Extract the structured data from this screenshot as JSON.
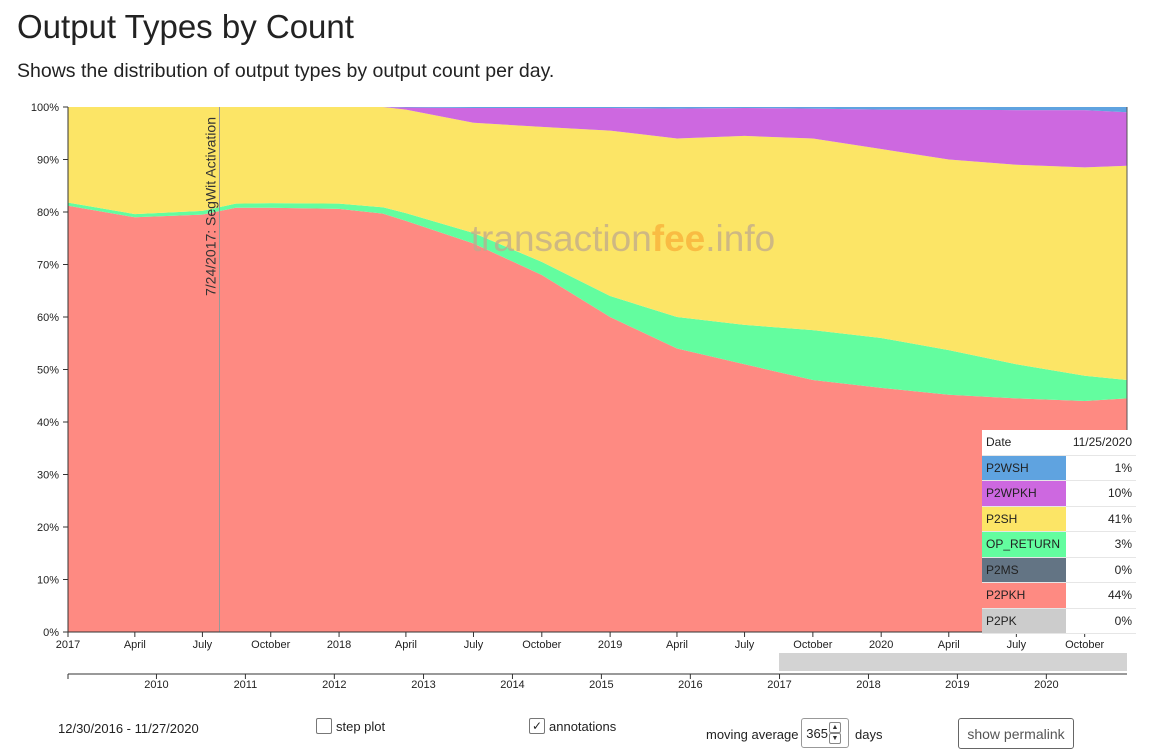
{
  "page": {
    "title": "Output Types by Count",
    "subtitle": "Shows the distribution of output types by output count per day."
  },
  "watermark": {
    "part1": "transaction",
    "part2": "fee",
    "part3": ".info"
  },
  "colors": {
    "P2WSH": "#5fa3e0",
    "P2WPKH": "#cd68e0",
    "P2SH": "#fce566",
    "OP_RETURN": "#63fd9f",
    "P2MS": "#637484",
    "P2PKH": "#fe8a82",
    "P2PK": "#cccccc"
  },
  "chart_data": {
    "type": "area",
    "stacked": true,
    "x_range": [
      "2017-01-01",
      "2020-11-27"
    ],
    "ylim": [
      0,
      100
    ],
    "y_ticks": [
      "0%",
      "10%",
      "20%",
      "30%",
      "40%",
      "50%",
      "60%",
      "70%",
      "80%",
      "90%",
      "100%"
    ],
    "x_ticks": [
      {
        "date": "2017-01-01",
        "label": "2017"
      },
      {
        "date": "2017-04-01",
        "label": "April"
      },
      {
        "date": "2017-07-01",
        "label": "July"
      },
      {
        "date": "2017-10-01",
        "label": "October"
      },
      {
        "date": "2018-01-01",
        "label": "2018"
      },
      {
        "date": "2018-04-01",
        "label": "April"
      },
      {
        "date": "2018-07-01",
        "label": "July"
      },
      {
        "date": "2018-10-01",
        "label": "October"
      },
      {
        "date": "2019-01-01",
        "label": "2019"
      },
      {
        "date": "2019-04-01",
        "label": "April"
      },
      {
        "date": "2019-07-01",
        "label": "July"
      },
      {
        "date": "2019-10-01",
        "label": "October"
      },
      {
        "date": "2020-01-01",
        "label": "2020"
      },
      {
        "date": "2020-04-01",
        "label": "April"
      },
      {
        "date": "2020-07-01",
        "label": "July"
      },
      {
        "date": "2020-10-01",
        "label": "October"
      }
    ],
    "x": [
      "2017-01-01",
      "2017-04-01",
      "2017-07-01",
      "2017-08-15",
      "2017-10-01",
      "2018-01-01",
      "2018-03-01",
      "2018-04-01",
      "2018-07-01",
      "2018-10-01",
      "2019-01-01",
      "2019-04-01",
      "2019-07-01",
      "2019-10-01",
      "2020-01-01",
      "2020-04-01",
      "2020-07-01",
      "2020-10-01",
      "2020-11-27"
    ],
    "series": [
      {
        "name": "P2PK",
        "values": [
          0,
          0,
          0,
          0,
          0,
          0,
          0,
          0,
          0,
          0,
          0,
          0,
          0,
          0,
          0,
          0,
          0,
          0,
          0
        ]
      },
      {
        "name": "P2PKH",
        "values": [
          81.2,
          79.0,
          79.5,
          80.8,
          80.8,
          80.6,
          79.7,
          78.3,
          74.0,
          68.0,
          60.0,
          54.0,
          51.0,
          48.0,
          46.5,
          45.2,
          44.5,
          44.0,
          44.5
        ]
      },
      {
        "name": "P2MS",
        "values": [
          0,
          0,
          0,
          0,
          0,
          0,
          0,
          0,
          0,
          0,
          0,
          0,
          0,
          0,
          0,
          0,
          0,
          0,
          0
        ]
      },
      {
        "name": "OP_RETURN",
        "values": [
          0.6,
          0.6,
          0.7,
          0.8,
          0.9,
          1.0,
          1.2,
          1.5,
          2.0,
          2.5,
          4.0,
          6.0,
          7.5,
          9.5,
          9.5,
          8.5,
          6.5,
          4.8,
          3.5
        ]
      },
      {
        "name": "P2SH",
        "values": [
          18.2,
          20.4,
          19.8,
          18.4,
          18.3,
          18.4,
          19.1,
          19.7,
          21.0,
          25.7,
          31.5,
          34.0,
          36.0,
          36.5,
          36.0,
          36.3,
          38.0,
          39.7,
          40.8
        ]
      },
      {
        "name": "P2WPKH",
        "values": [
          0,
          0,
          0,
          0,
          0,
          0,
          0,
          0.4,
          2.8,
          3.6,
          4.3,
          5.7,
          5.3,
          5.7,
          7.5,
          9.5,
          10.4,
          10.9,
          10.2
        ]
      },
      {
        "name": "P2WSH",
        "values": [
          0,
          0,
          0,
          0,
          0,
          0,
          0,
          0.1,
          0.2,
          0.2,
          0.2,
          0.3,
          0.2,
          0.3,
          0.5,
          0.5,
          0.6,
          0.6,
          1.0
        ]
      }
    ],
    "annotations": [
      {
        "date": "2017-07-24",
        "label": "7/24/2017: SegWit Activation"
      }
    ]
  },
  "navigator": {
    "x_range": [
      "2009-01-03",
      "2020-11-27"
    ],
    "ticks": [
      "2010",
      "2011",
      "2012",
      "2013",
      "2014",
      "2015",
      "2016",
      "2017",
      "2018",
      "2019",
      "2020"
    ],
    "selection": [
      "2016-12-30",
      "2020-11-27"
    ]
  },
  "legend": {
    "date_label": "Date",
    "date_value": "11/25/2020",
    "rows": [
      {
        "name": "P2WSH",
        "value": "1%"
      },
      {
        "name": "P2WPKH",
        "value": "10%"
      },
      {
        "name": "P2SH",
        "value": "41%"
      },
      {
        "name": "OP_RETURN",
        "value": "3%"
      },
      {
        "name": "P2MS",
        "value": "0%"
      },
      {
        "name": "P2PKH",
        "value": "44%"
      },
      {
        "name": "P2PK",
        "value": "0%"
      }
    ]
  },
  "controls": {
    "date_range": "12/30/2016 - 11/27/2020",
    "step_plot": {
      "label": "step plot",
      "checked": false
    },
    "annotations": {
      "label": "annotations",
      "checked": true
    },
    "moving_average": {
      "label": "moving average",
      "value": "365",
      "unit": "days"
    },
    "permalink_label": "show permalink"
  }
}
